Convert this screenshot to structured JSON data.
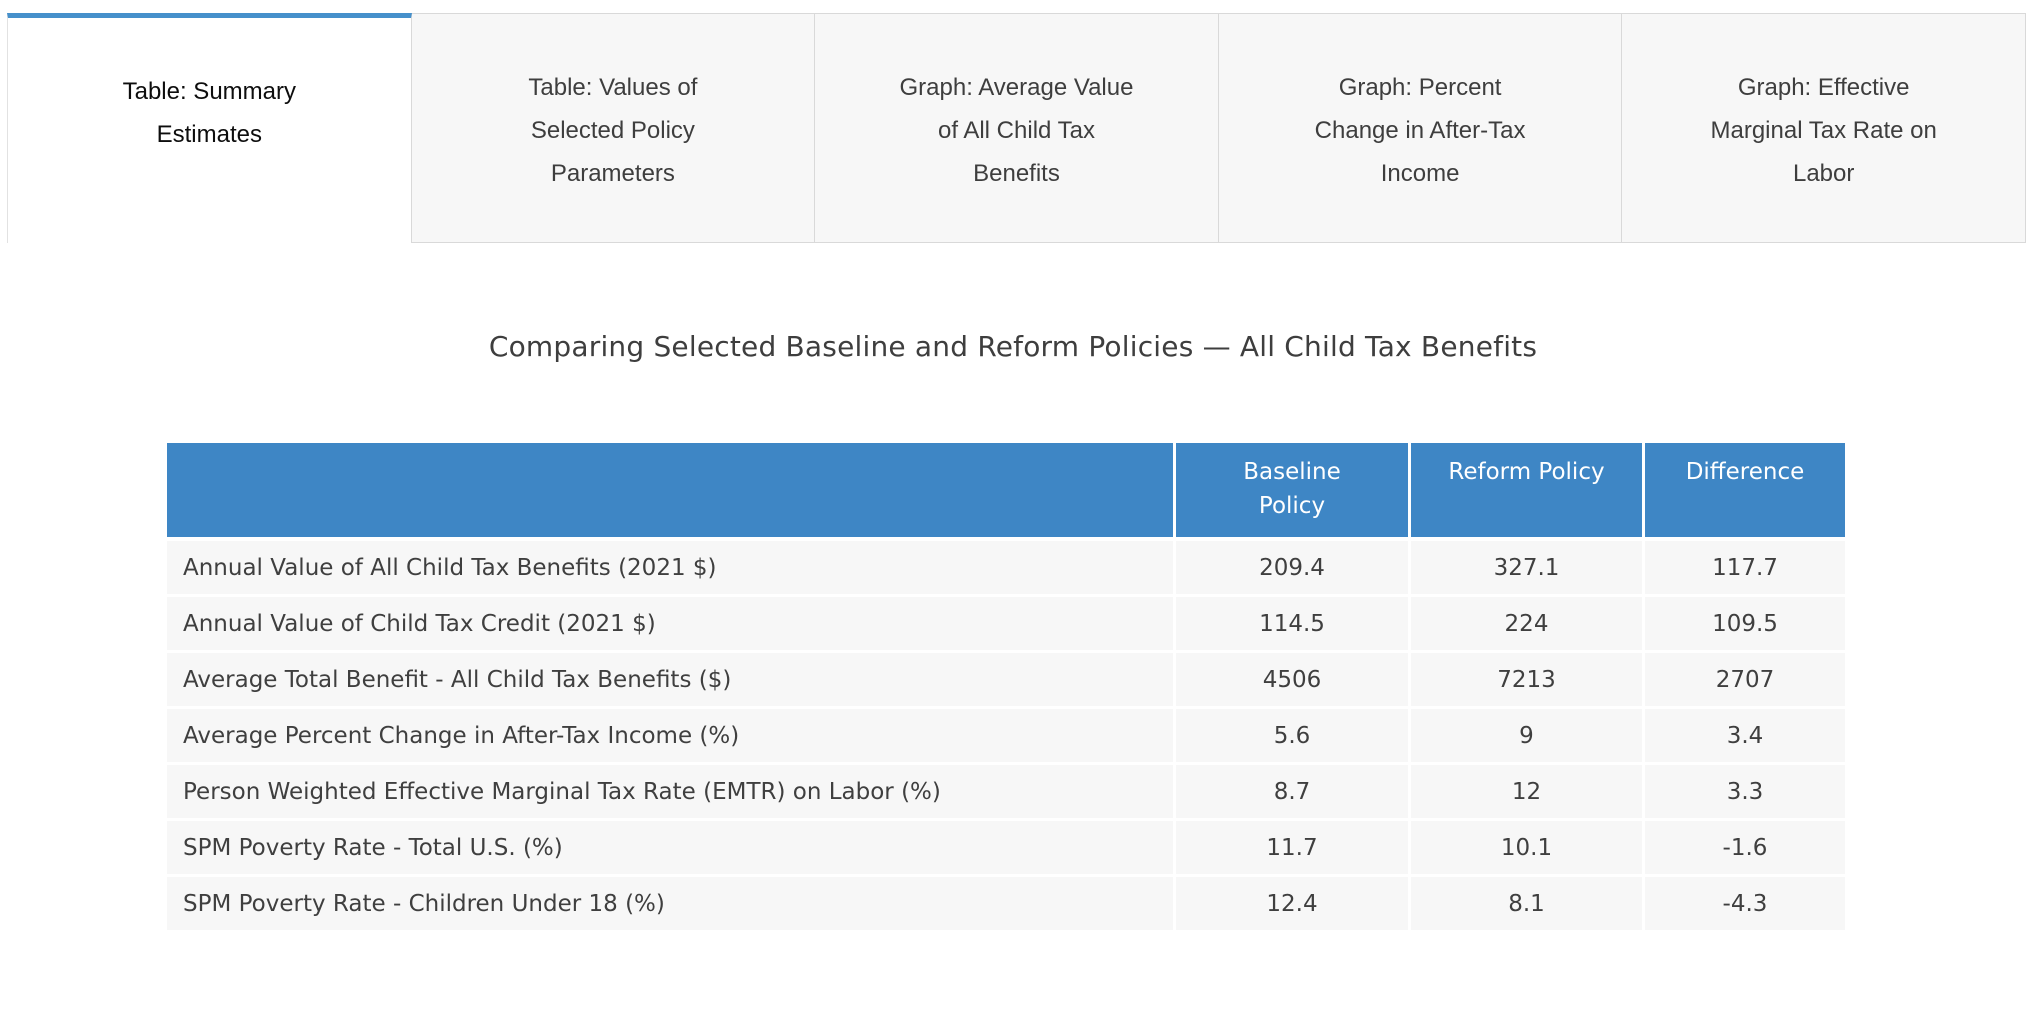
{
  "tabs": [
    {
      "label": "Table: Summary Estimates",
      "active": true
    },
    {
      "label": "Table: Values of Selected Policy Parameters",
      "active": false
    },
    {
      "label": "Graph: Average Value of All Child Tax Benefits",
      "active": false
    },
    {
      "label": "Graph: Percent Change in After-Tax Income",
      "active": false
    },
    {
      "label": "Graph: Effective Marginal Tax Rate on Labor",
      "active": false
    }
  ],
  "title": "Comparing Selected Baseline and Reform Policies — All Child Tax Benefits",
  "table": {
    "columns": [
      "",
      "Baseline Policy",
      "Reform Policy",
      "Difference"
    ],
    "rows": [
      {
        "label": "Annual Value of All Child Tax Benefits (2021 $)",
        "baseline": "209.4",
        "reform": "327.1",
        "difference": "117.7"
      },
      {
        "label": "Annual Value of Child Tax Credit (2021 $)",
        "baseline": "114.5",
        "reform": "224",
        "difference": "109.5"
      },
      {
        "label": "Average Total Benefit - All Child Tax Benefits ($)",
        "baseline": "4506",
        "reform": "7213",
        "difference": "2707"
      },
      {
        "label": "Average Percent Change in After-Tax Income (%)",
        "baseline": "5.6",
        "reform": "9",
        "difference": "3.4"
      },
      {
        "label": "Person Weighted Effective Marginal Tax Rate (EMTR) on Labor (%)",
        "baseline": "8.7",
        "reform": "12",
        "difference": "3.3"
      },
      {
        "label": "SPM Poverty Rate - Total U.S. (%)",
        "baseline": "11.7",
        "reform": "10.1",
        "difference": "-1.6"
      },
      {
        "label": "SPM Poverty Rate - Children Under 18 (%)",
        "baseline": "12.4",
        "reform": "8.1",
        "difference": "-4.3"
      }
    ]
  },
  "colors": {
    "header_blue": "#3e86c5",
    "active_tab_accent": "#4690cb",
    "row_background": "#f7f7f7",
    "tab_background": "#f7f7f7",
    "tab_border": "#d9d9d9",
    "body_text": "#3f3f3f",
    "header_text": "#ffffff"
  }
}
